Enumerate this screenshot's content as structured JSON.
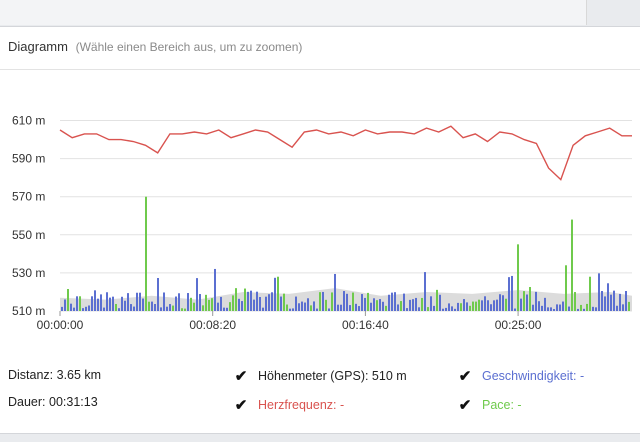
{
  "panel": {
    "title": "Diagramm",
    "hint": "(Wähle einen Bereich aus, um zu zoomen)"
  },
  "stats": {
    "distance": "Distanz: 3.65 km",
    "duration": "Dauer: 00:31:13"
  },
  "legend": {
    "elevation": {
      "label": "Höhenmeter (GPS): 510 m",
      "checked": true,
      "color": "#222222"
    },
    "speed": {
      "label": "Geschwindigkeit: -",
      "checked": true,
      "color": "#5b6fd1"
    },
    "heartrate": {
      "label": "Herzfrequenz: -",
      "checked": true,
      "color": "#d9534f"
    },
    "pace": {
      "label": "Pace: -",
      "checked": true,
      "color": "#6fca4c"
    }
  },
  "colors": {
    "heartrate_line": "#d9534f",
    "speed_bars": "#5b6fd1",
    "pace_bars": "#6fca4c",
    "elevation_area": "#dcdcdc",
    "grid": "#e2e2e2"
  },
  "chart_data": {
    "type": "line",
    "y_ticks": [
      "610 m",
      "590 m",
      "570 m",
      "550 m",
      "530 m",
      "510 m"
    ],
    "y_tick_values": [
      610,
      590,
      570,
      550,
      530,
      510
    ],
    "x_ticks": [
      "00:00:00",
      "00:08:20",
      "00:16:40",
      "00:25:00"
    ],
    "x_tick_seconds": [
      0,
      500,
      1000,
      1500
    ],
    "xlim_seconds": [
      0,
      1873
    ],
    "ylim": [
      510,
      615
    ],
    "grid": true,
    "series": [
      {
        "name": "Herzfrequenz",
        "kind": "line",
        "x_seconds": [
          0,
          40,
          80,
          120,
          160,
          200,
          240,
          280,
          320,
          360,
          400,
          440,
          480,
          520,
          560,
          600,
          640,
          680,
          720,
          760,
          800,
          840,
          880,
          920,
          960,
          1000,
          1040,
          1080,
          1120,
          1160,
          1200,
          1240,
          1280,
          1320,
          1360,
          1400,
          1440,
          1480,
          1520,
          1560,
          1600,
          1640,
          1680,
          1720,
          1760,
          1800,
          1840,
          1873
        ],
        "values": [
          605,
          601,
          603,
          603,
          600,
          600,
          599,
          597,
          593,
          603,
          603,
          604,
          603,
          605,
          601,
          603,
          605,
          604,
          600,
          596,
          604,
          605,
          603,
          604,
          602,
          605,
          603,
          604,
          604,
          603,
          606,
          604,
          607,
          601,
          603,
          599,
          604,
          603,
          600,
          598,
          585,
          579,
          597,
          602,
          604,
          606,
          602,
          602
        ]
      },
      {
        "name": "Höhenmeter (GPS)",
        "kind": "area",
        "x_seconds": [
          0,
          150,
          300,
          450,
          600,
          750,
          900,
          1050,
          1200,
          1350,
          1500,
          1650,
          1800,
          1873
        ],
        "values": [
          517,
          516,
          518,
          516,
          520,
          519,
          522,
          518,
          520,
          519,
          521,
          519,
          520,
          518
        ]
      }
    ]
  }
}
